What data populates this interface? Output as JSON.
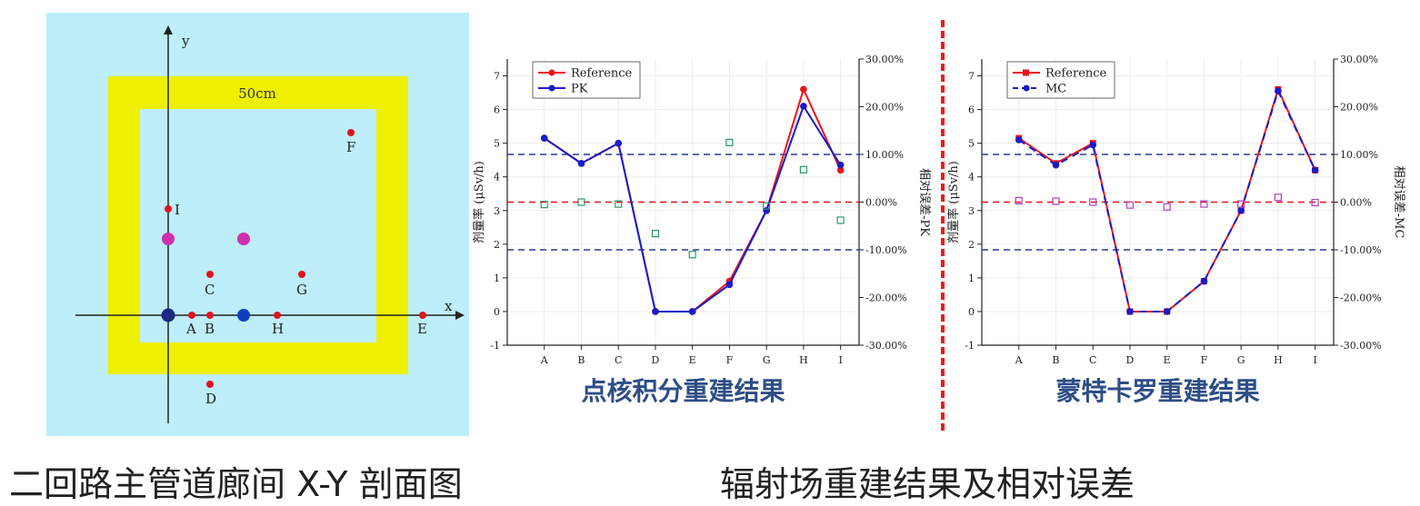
{
  "schematic": {
    "caption": "二回路主管道廊间 X-Y 剖面图",
    "x_label": "x",
    "y_label": "y",
    "dimension_label": "50cm",
    "points": [
      {
        "label": "A",
        "kind": "detector"
      },
      {
        "label": "B",
        "kind": "detector"
      },
      {
        "label": "C",
        "kind": "detector"
      },
      {
        "label": "D",
        "kind": "detector"
      },
      {
        "label": "E",
        "kind": "detector"
      },
      {
        "label": "F",
        "kind": "detector"
      },
      {
        "label": "G",
        "kind": "detector"
      },
      {
        "label": "H",
        "kind": "detector"
      },
      {
        "label": "I",
        "kind": "detector"
      }
    ],
    "colors": {
      "background": "#bdeefa",
      "wall": "#eef000",
      "detector": "#e0141c",
      "source_magenta": "#d030b0",
      "source_navy": "#1a2a80",
      "source_blue": "#1040c0"
    }
  },
  "section_caption": "辐射场重建结果及相对误差",
  "chart_data": [
    {
      "type": "line",
      "subtitle": "点核积分重建结果",
      "categories": [
        "A",
        "B",
        "C",
        "D",
        "E",
        "F",
        "G",
        "H",
        "I"
      ],
      "ylabel_left": "剂量率 (μSv/h)",
      "ylabel_right": "相对误差-PK",
      "ylim_left": [
        -1,
        7.5
      ],
      "ylim_right": [
        -0.3,
        0.3
      ],
      "yticks_left": [
        "-1",
        "0",
        "1",
        "2",
        "3",
        "4",
        "5",
        "6",
        "7"
      ],
      "yticks_right": [
        "-30.00%",
        "-20.00%",
        "-10.00%",
        "0.00%",
        "10.00%",
        "20.00%",
        "30.00%"
      ],
      "reference_lines_right": [
        0.1,
        0.0,
        -0.1
      ],
      "series": [
        {
          "name": "Reference",
          "axis": "left",
          "color": "#e8141c",
          "style": "solid",
          "values": [
            5.15,
            4.4,
            5.0,
            0.0,
            0.0,
            0.9,
            3.0,
            6.6,
            4.2
          ]
        },
        {
          "name": "PK",
          "axis": "left",
          "color": "#1a1acc",
          "style": "solid",
          "values": [
            5.15,
            4.4,
            5.0,
            0.0,
            0.0,
            0.8,
            3.0,
            6.1,
            4.35
          ]
        },
        {
          "name": "",
          "axis": "right",
          "color": "#2a9a6a",
          "style": "squares",
          "values": [
            -0.005,
            0.0,
            -0.004,
            -0.066,
            -0.11,
            0.125,
            -0.008,
            0.068,
            -0.038
          ]
        }
      ],
      "legend": {
        "position": "top-left",
        "entries": [
          "Reference",
          "PK"
        ]
      },
      "grid": true
    },
    {
      "type": "line",
      "subtitle": "蒙特卡罗重建结果",
      "categories": [
        "A",
        "B",
        "C",
        "D",
        "E",
        "F",
        "G",
        "H",
        "I"
      ],
      "ylabel_left": "剂量率 (μSv/h)",
      "ylabel_right": "相对误差-MC",
      "ylim_left": [
        -1,
        7.5
      ],
      "ylim_right": [
        -0.3,
        0.3
      ],
      "yticks_left": [
        "-1",
        "0",
        "1",
        "2",
        "3",
        "4",
        "5",
        "6",
        "7"
      ],
      "yticks_right": [
        "-30.00%",
        "-20.00%",
        "-10.00%",
        "0.00%",
        "10.00%",
        "20.00%",
        "30.00%"
      ],
      "reference_lines_right": [
        0.1,
        0.0,
        -0.1
      ],
      "series": [
        {
          "name": "Reference",
          "axis": "left",
          "color": "#e8141c",
          "style": "solid",
          "values": [
            5.15,
            4.4,
            5.0,
            0.0,
            0.0,
            0.9,
            3.0,
            6.6,
            4.2
          ]
        },
        {
          "name": "MC",
          "axis": "left",
          "color": "#1a1acc",
          "style": "dashed",
          "values": [
            5.1,
            4.35,
            4.95,
            0.0,
            0.0,
            0.9,
            3.0,
            6.55,
            4.2
          ]
        },
        {
          "name": "",
          "axis": "right",
          "color": "#b040c0",
          "style": "squares",
          "values": [
            0.003,
            0.002,
            0.0,
            -0.006,
            -0.01,
            -0.004,
            -0.004,
            0.01,
            -0.001
          ]
        }
      ],
      "legend": {
        "position": "top-left",
        "entries": [
          "Reference",
          "MC"
        ]
      },
      "grid": true
    }
  ]
}
